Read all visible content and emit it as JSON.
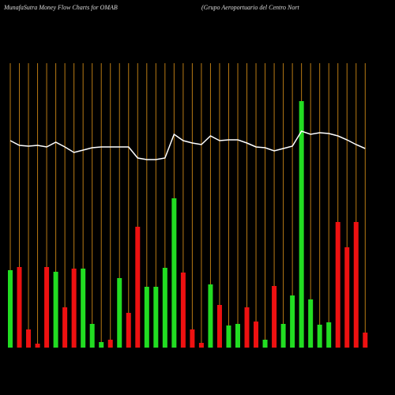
{
  "chart_data": {
    "type": "bar",
    "title": "MunafaSutra  Money  Flow  Charts  for  OMAB",
    "subtitle": "(Grupo  Aeroportuario  del  Centro  Nort",
    "categories": [
      null,
      null,
      null,
      null,
      null,
      null,
      null,
      null,
      null,
      null,
      null,
      null,
      null,
      null,
      null,
      null,
      null,
      null,
      null,
      null,
      null,
      null,
      null,
      null,
      null,
      null,
      null,
      null,
      null,
      null,
      null,
      null,
      null,
      null,
      null,
      null,
      null,
      null,
      null,
      null
    ],
    "values": [
      98,
      102,
      23,
      5,
      102,
      96,
      51,
      100,
      100,
      30,
      7,
      10,
      88,
      44,
      153,
      77,
      77,
      101,
      189,
      95,
      23,
      6,
      80,
      54,
      28,
      30,
      51,
      33,
      10,
      78,
      30,
      66,
      312,
      61,
      29,
      32,
      159,
      127,
      159,
      19
    ],
    "colors": [
      "#22dd22",
      "#ee1111",
      "#ee1111",
      "#ee1111",
      "#ee1111",
      "#22dd22",
      "#ee1111",
      "#ee1111",
      "#22dd22",
      "#22dd22",
      "#22dd22",
      "#ee1111",
      "#22dd22",
      "#ee1111",
      "#ee1111",
      "#22dd22",
      "#22dd22",
      "#22dd22",
      "#22dd22",
      "#ee1111",
      "#ee1111",
      "#ee1111",
      "#22dd22",
      "#ee1111",
      "#22dd22",
      "#22dd22",
      "#ee1111",
      "#ee1111",
      "#22dd22",
      "#ee1111",
      "#22dd22",
      "#22dd22",
      "#22dd22",
      "#22dd22",
      "#22dd22",
      "#22dd22",
      "#ee1111",
      "#ee1111",
      "#ee1111",
      "#ee1111"
    ],
    "line_values": [
      262,
      256,
      255,
      256,
      254,
      260,
      254,
      247,
      250,
      253,
      254,
      254,
      254,
      254,
      240,
      238,
      238,
      240,
      270,
      262,
      259,
      257,
      268,
      262,
      263,
      263,
      259,
      254,
      253,
      249,
      252,
      255,
      274,
      270,
      272,
      271,
      268,
      263,
      257,
      252
    ],
    "line_color": "#ffffff",
    "grid_color": "#b87a14",
    "ylim": [
      0,
      360
    ]
  }
}
